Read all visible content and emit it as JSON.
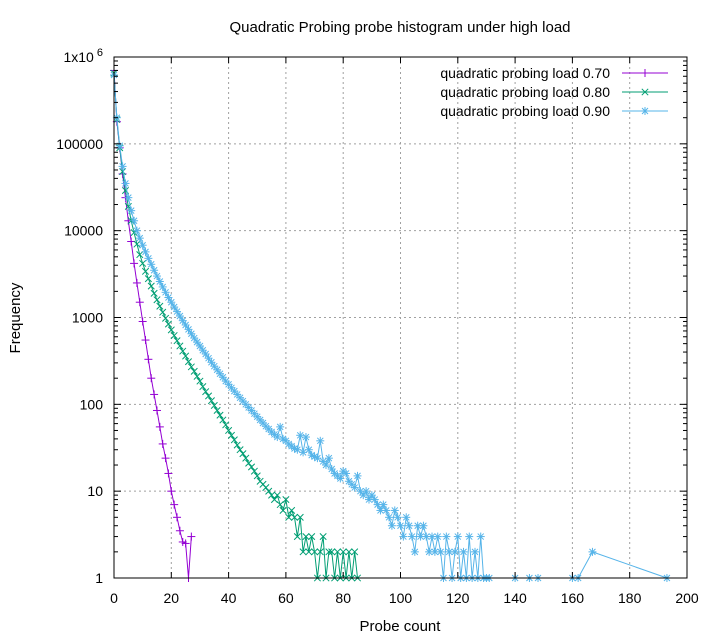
{
  "chart_data": {
    "type": "line",
    "title": "Quadratic Probing probe histogram under high load",
    "xlabel": "Probe count",
    "ylabel": "Frequency",
    "xlim": [
      0,
      200
    ],
    "ylim": [
      1,
      1000000
    ],
    "yscale": "log",
    "grid": true,
    "legend_position": "top-right",
    "x_ticks": [
      "0",
      "20",
      "40",
      "60",
      "80",
      "100",
      "120",
      "140",
      "160",
      "180",
      "200"
    ],
    "y_ticks": [
      {
        "value": 1,
        "label": "1"
      },
      {
        "value": 10,
        "label": "10"
      },
      {
        "value": 100,
        "label": "100"
      },
      {
        "value": 1000,
        "label": "1000"
      },
      {
        "value": 10000,
        "label": "10000"
      },
      {
        "value": 100000,
        "label": "100000"
      },
      {
        "value": 1000000,
        "label": "1x10",
        "superscript": "6"
      }
    ],
    "series": [
      {
        "name": "quadratic probing load 0.70",
        "color": "#9400d3",
        "marker": "plus",
        "x": [
          0,
          1,
          2,
          3,
          4,
          5,
          6,
          7,
          8,
          9,
          10,
          11,
          12,
          13,
          14,
          15,
          16,
          17,
          18,
          19,
          20,
          21,
          22,
          23,
          24,
          25,
          26,
          27
        ],
        "y": [
          700000,
          180000,
          90000,
          45000,
          24000,
          13000,
          7500,
          4200,
          2500,
          1500,
          900,
          550,
          330,
          200,
          130,
          85,
          55,
          35,
          24,
          16,
          10,
          7,
          5,
          3.5,
          2.6,
          2.5,
          1,
          3
        ]
      },
      {
        "name": "quadratic probing load 0.80",
        "color": "#009e73",
        "marker": "x",
        "x": [
          0,
          1,
          2,
          3,
          4,
          5,
          6,
          7,
          8,
          9,
          10,
          11,
          12,
          13,
          14,
          15,
          16,
          17,
          18,
          19,
          20,
          21,
          22,
          23,
          24,
          25,
          26,
          27,
          28,
          29,
          30,
          31,
          32,
          33,
          34,
          35,
          36,
          37,
          38,
          39,
          40,
          41,
          42,
          43,
          44,
          45,
          46,
          47,
          48,
          49,
          50,
          51,
          52,
          53,
          54,
          55,
          56,
          57,
          58,
          59,
          60,
          61,
          62,
          63,
          64,
          65,
          66,
          67,
          68,
          69,
          70,
          71,
          72,
          73,
          74,
          75,
          76,
          77,
          78,
          79,
          80,
          81,
          82,
          83,
          84,
          85
        ],
        "y": [
          650000,
          190000,
          90000,
          48000,
          29000,
          19000,
          13000,
          9500,
          7000,
          5300,
          4200,
          3400,
          2800,
          2300,
          1900,
          1600,
          1350,
          1150,
          980,
          840,
          720,
          620,
          540,
          470,
          410,
          360,
          310,
          270,
          240,
          210,
          185,
          160,
          140,
          125,
          110,
          97,
          85,
          75,
          66,
          58,
          50,
          44,
          39,
          34,
          30,
          27,
          24,
          21,
          19,
          17,
          15,
          13,
          12,
          11,
          10,
          9,
          8,
          9,
          7,
          6,
          8,
          5,
          6,
          5,
          3,
          5,
          2,
          3,
          2,
          3,
          2,
          1,
          2,
          3,
          1,
          2,
          2,
          1,
          2,
          1,
          2,
          1,
          2,
          1,
          2,
          1
        ]
      },
      {
        "name": "quadratic probing load 0.90",
        "color": "#56b4e9",
        "marker": "star",
        "x": [
          0,
          1,
          2,
          3,
          4,
          5,
          6,
          7,
          8,
          9,
          10,
          11,
          12,
          13,
          14,
          15,
          16,
          17,
          18,
          19,
          20,
          21,
          22,
          23,
          24,
          25,
          26,
          27,
          28,
          29,
          30,
          31,
          32,
          33,
          34,
          35,
          36,
          37,
          38,
          39,
          40,
          41,
          42,
          43,
          44,
          45,
          46,
          47,
          48,
          49,
          50,
          51,
          52,
          53,
          54,
          55,
          56,
          57,
          58,
          59,
          60,
          61,
          62,
          63,
          64,
          65,
          66,
          67,
          68,
          69,
          70,
          71,
          72,
          73,
          74,
          75,
          76,
          77,
          78,
          79,
          80,
          81,
          82,
          83,
          84,
          85,
          86,
          87,
          88,
          89,
          90,
          91,
          92,
          93,
          94,
          95,
          96,
          97,
          98,
          99,
          100,
          101,
          102,
          103,
          104,
          105,
          106,
          107,
          108,
          109,
          110,
          111,
          112,
          113,
          114,
          115,
          116,
          117,
          118,
          119,
          120,
          121,
          122,
          123,
          124,
          125,
          126,
          127,
          128,
          129,
          130,
          131,
          140,
          145,
          148,
          160,
          162,
          167,
          193
        ],
        "y": [
          620000,
          200000,
          95000,
          55000,
          35000,
          24000,
          17000,
          13000,
          10000,
          8200,
          6800,
          5700,
          4800,
          4100,
          3500,
          3000,
          2600,
          2250,
          1950,
          1700,
          1500,
          1320,
          1170,
          1040,
          920,
          820,
          730,
          650,
          580,
          520,
          470,
          420,
          380,
          340,
          305,
          275,
          250,
          225,
          205,
          185,
          170,
          155,
          142,
          130,
          119,
          109,
          100,
          92,
          85,
          78,
          72,
          66,
          61,
          56,
          52,
          48,
          45,
          42,
          55,
          40,
          38,
          35,
          33,
          31,
          30,
          44,
          28,
          42,
          30,
          26,
          25,
          24,
          38,
          22,
          20,
          24,
          18,
          16,
          15,
          14,
          17,
          16,
          13,
          12,
          11,
          15,
          10,
          9,
          10,
          8,
          9,
          8,
          7,
          6,
          7,
          6,
          5,
          4,
          6,
          5,
          4,
          3,
          5,
          4,
          3,
          2,
          4,
          3,
          4,
          3,
          2,
          3,
          2,
          3,
          2,
          1,
          3,
          2,
          1,
          2,
          3,
          1,
          2,
          1,
          3,
          1,
          2,
          1,
          3,
          1,
          1,
          1,
          1,
          1,
          1,
          1,
          1,
          2,
          1
        ]
      }
    ]
  }
}
